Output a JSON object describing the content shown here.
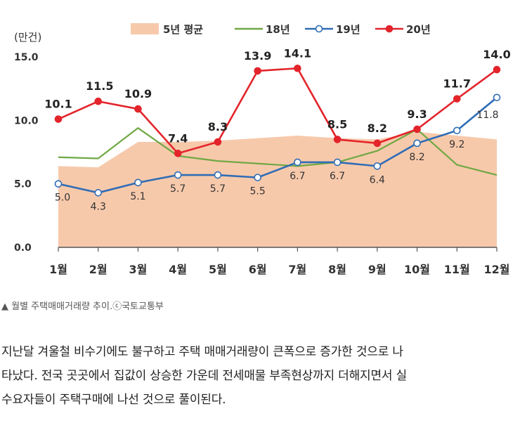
{
  "chart_data": {
    "type": "line",
    "unit_label": "(만건)",
    "categories": [
      "1월",
      "2월",
      "3월",
      "4월",
      "5월",
      "6월",
      "7월",
      "8월",
      "9월",
      "10월",
      "11월",
      "12월"
    ],
    "ylim": [
      0,
      15
    ],
    "yticks": [
      "0.0",
      "5.0",
      "10.0",
      "15.0"
    ],
    "series": [
      {
        "name": "5년 평균",
        "kind": "area",
        "color": "#f7c9ab",
        "values": [
          6.4,
          6.3,
          8.3,
          8.3,
          8.4,
          8.6,
          8.8,
          8.6,
          8.5,
          9.1,
          8.8,
          8.5
        ]
      },
      {
        "name": "18년",
        "kind": "line",
        "color": "#70a844",
        "values": [
          7.1,
          7.0,
          9.4,
          7.2,
          6.8,
          6.6,
          6.4,
          6.7,
          7.6,
          9.3,
          6.5,
          5.7
        ]
      },
      {
        "name": "19년",
        "kind": "line",
        "color": "#2f6db5",
        "marker": "open",
        "values": [
          5.0,
          4.3,
          5.1,
          5.7,
          5.7,
          5.5,
          6.7,
          6.7,
          6.4,
          8.2,
          9.2,
          11.8
        ],
        "labels": [
          "5.0",
          "4.3",
          "5.1",
          "5.7",
          "5.7",
          "5.5",
          "6.7",
          "6.7",
          "6.4",
          "8.2",
          "9.2",
          "11.8"
        ]
      },
      {
        "name": "20년",
        "kind": "line",
        "color": "#e3242b",
        "marker": "filled",
        "values": [
          10.1,
          11.5,
          10.9,
          7.4,
          8.3,
          13.9,
          14.1,
          8.5,
          8.2,
          9.3,
          11.7,
          14.0
        ],
        "labels": [
          "10.1",
          "11.5",
          "10.9",
          "7.4",
          "8.3",
          "13.9",
          "14.1",
          "8.5",
          "8.2",
          "9.3",
          "11.7",
          "14.0"
        ]
      }
    ]
  },
  "caption": "▲ 월별 주택매매거래량 추이.ⓒ국토교통부",
  "article": {
    "line1": "지난달 겨울철 비수기에도 불구하고 주택 매매거래량이 큰폭으로 증가한 것으로 나",
    "line2": "타났다. 전국 곳곳에서 집값이 상승한 가운데 전세매물 부족현상까지 더해지면서 실",
    "line3": "수요자들이 주택구매에 나선 것으로 풀이된다."
  }
}
